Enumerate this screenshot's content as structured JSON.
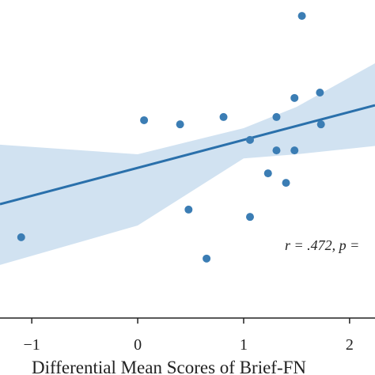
{
  "chart_data": {
    "type": "scatter",
    "x_label": "Differential Mean Scores of Brief-FN",
    "annotation": "r = .472, p =",
    "xlim": [
      -1.3,
      2.24
    ],
    "ylim": [
      0,
      10
    ],
    "xticks": [
      {
        "value": -1,
        "label": "−1"
      },
      0,
      1,
      2
    ],
    "color": "#3b7db4",
    "x": [
      1.55,
      1.72,
      1.48,
      0.06,
      0.4,
      0.81,
      1.31,
      1.73,
      1.06,
      1.31,
      1.48,
      1.23,
      1.4,
      0.48,
      1.06,
      -1.1,
      0.65
    ],
    "values": [
      9.5,
      7.09,
      6.92,
      6.22,
      6.09,
      6.32,
      6.32,
      6.09,
      5.6,
      5.27,
      5.27,
      4.55,
      4.25,
      3.41,
      3.18,
      2.54,
      1.87
    ],
    "line": {
      "color": "#2a70ab",
      "x": [
        -1.3,
        2.24
      ],
      "y": [
        3.58,
        6.69
      ]
    },
    "band": {
      "color": "#c9ddef",
      "x": [
        -1.3,
        0,
        1,
        1.5,
        2.24
      ],
      "upper": [
        5.45,
        5.15,
        5.97,
        6.64,
        8.01
      ],
      "lower": [
        1.67,
        2.91,
        5.02,
        5.15,
        5.41
      ]
    }
  }
}
